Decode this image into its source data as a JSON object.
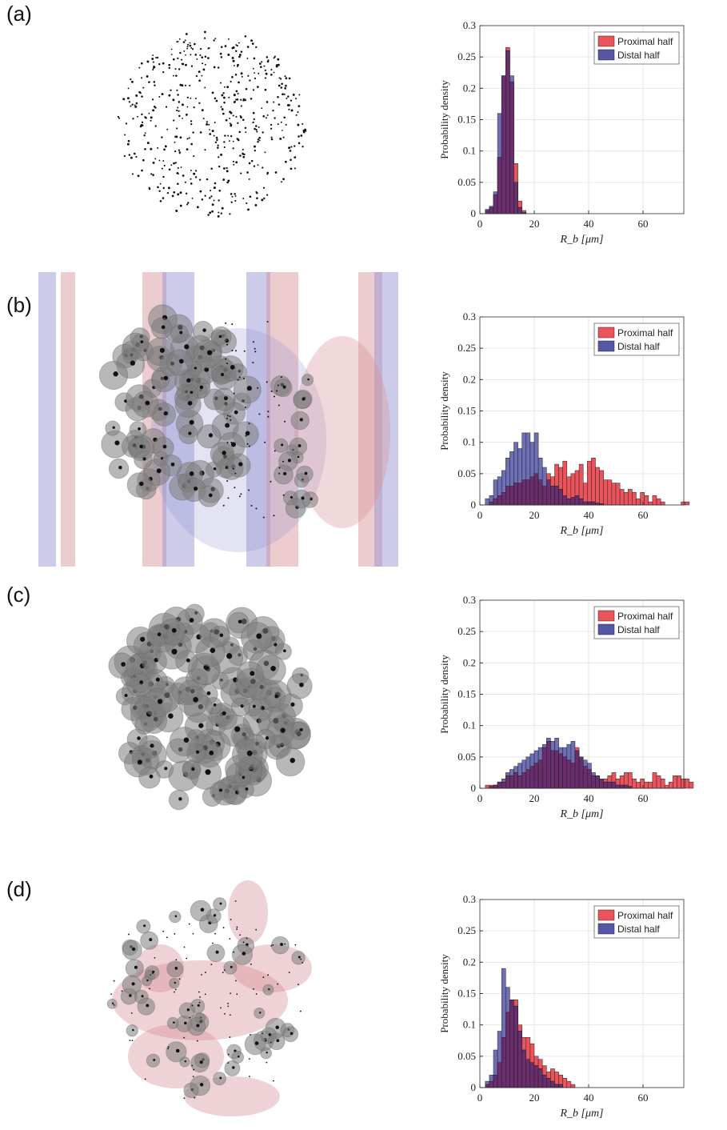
{
  "panels": [
    {
      "label": "(a)"
    },
    {
      "label": "(b)"
    },
    {
      "label": "(c)"
    },
    {
      "label": "(d)"
    }
  ],
  "colors": {
    "proximal": "#ec545c",
    "distal": "#5556a8",
    "overlap": "#6a2d6e",
    "grid": "#e6e6e6",
    "bubble": "#7d7d7d",
    "membrane_red": "#d88f95",
    "membrane_blue": "#8e8fd0"
  },
  "chart_data": [
    {
      "type": "bar",
      "panel": "(a)",
      "xlabel": "R_b [μm]",
      "ylabel": "Probability density",
      "xlim": [
        0,
        75
      ],
      "ylim": [
        0,
        0.3
      ],
      "xticks": [
        "0",
        "20",
        "40",
        "60"
      ],
      "yticks": [
        "0",
        "0.05",
        "0.1",
        "0.15",
        "0.2",
        "0.25",
        "0.3"
      ],
      "legend": "top-right",
      "grid": true,
      "bin_width": 1.5,
      "bin_start": 2,
      "series": [
        {
          "name": "Proximal half",
          "values": [
            0.005,
            0.01,
            0.03,
            0.09,
            0.22,
            0.265,
            0.21,
            0.08,
            0.02,
            0.005
          ]
        },
        {
          "name": "Distal half",
          "values": [
            0.007,
            0.012,
            0.035,
            0.16,
            0.22,
            0.26,
            0.22,
            0.05,
            0.01,
            0.002
          ]
        }
      ]
    },
    {
      "type": "bar",
      "panel": "(b)",
      "xlabel": "R_b [μm]",
      "ylabel": "Probability density",
      "xlim": [
        0,
        75
      ],
      "ylim": [
        0,
        0.3
      ],
      "xticks": [
        "0",
        "20",
        "40",
        "60"
      ],
      "yticks": [
        "0",
        "0.05",
        "0.1",
        "0.15",
        "0.2",
        "0.25",
        "0.3"
      ],
      "legend": "top-right",
      "grid": true,
      "bin_width": 1.5,
      "bin_start": 2,
      "series": [
        {
          "name": "Proximal half",
          "values": [
            0,
            0.005,
            0.01,
            0.015,
            0.02,
            0.03,
            0.03,
            0.035,
            0.035,
            0.04,
            0.04,
            0.045,
            0.05,
            0.04,
            0.03,
            0.05,
            0.045,
            0.065,
            0.06,
            0.07,
            0.045,
            0.05,
            0.055,
            0.065,
            0.035,
            0.07,
            0.075,
            0.06,
            0.055,
            0.04,
            0.04,
            0.035,
            0.035,
            0.025,
            0.02,
            0.025,
            0.02,
            0.01,
            0.02,
            0.015,
            0.005,
            0.015,
            0.01,
            0.005,
            0,
            0,
            0,
            0,
            0.005,
            0.005,
            0
          ]
        },
        {
          "name": "Distal half",
          "values": [
            0.01,
            0.015,
            0.04,
            0.045,
            0.055,
            0.075,
            0.085,
            0.1,
            0.09,
            0.115,
            0.115,
            0.1,
            0.115,
            0.075,
            0.06,
            0.04,
            0.03,
            0.03,
            0.025,
            0.015,
            0.01,
            0.012,
            0.015,
            0.01,
            0.005,
            0.005,
            0.005,
            0.003,
            0.002,
            0,
            0,
            0,
            0,
            0,
            0,
            0,
            0,
            0,
            0,
            0,
            0,
            0,
            0,
            0,
            0,
            0,
            0,
            0,
            0,
            0,
            0
          ]
        }
      ]
    },
    {
      "type": "bar",
      "panel": "(c)",
      "xlabel": "R_b [μm]",
      "ylabel": "Probability density",
      "xlim": [
        0,
        75
      ],
      "ylim": [
        0,
        0.3
      ],
      "xticks": [
        "0",
        "20",
        "40",
        "60"
      ],
      "yticks": [
        "0",
        "0.05",
        "0.1",
        "0.15",
        "0.2",
        "0.25",
        "0.3"
      ],
      "legend": "top-right",
      "grid": true,
      "bin_width": 1.5,
      "bin_start": 2,
      "series": [
        {
          "name": "Proximal half",
          "values": [
            0.005,
            0.005,
            0.005,
            0.01,
            0.01,
            0.02,
            0.02,
            0.025,
            0.02,
            0.025,
            0.03,
            0.035,
            0.04,
            0.045,
            0.065,
            0.075,
            0.06,
            0.06,
            0.055,
            0.05,
            0.045,
            0.04,
            0.065,
            0.05,
            0.035,
            0.03,
            0.02,
            0.02,
            0.015,
            0.015,
            0.02,
            0.025,
            0.015,
            0.02,
            0.025,
            0.025,
            0.015,
            0.01,
            0.015,
            0.01,
            0.01,
            0.025,
            0.02,
            0.015,
            0.005,
            0.01,
            0.02,
            0.02,
            0.015,
            0.015,
            0.01
          ]
        },
        {
          "name": "Distal half",
          "values": [
            0,
            0.003,
            0.005,
            0.01,
            0.015,
            0.025,
            0.03,
            0.035,
            0.04,
            0.045,
            0.05,
            0.055,
            0.06,
            0.065,
            0.07,
            0.08,
            0.075,
            0.08,
            0.065,
            0.065,
            0.07,
            0.075,
            0.06,
            0.05,
            0.045,
            0.04,
            0.025,
            0.02,
            0.015,
            0.01,
            0.01,
            0.01,
            0.005,
            0.005,
            0.005,
            0.003,
            0,
            0,
            0,
            0,
            0,
            0,
            0,
            0,
            0,
            0,
            0,
            0,
            0,
            0,
            0
          ]
        }
      ]
    },
    {
      "type": "bar",
      "panel": "(d)",
      "xlabel": "R_b [μm]",
      "ylabel": "Probability density",
      "xlim": [
        0,
        75
      ],
      "ylim": [
        0,
        0.3
      ],
      "xticks": [
        "0",
        "20",
        "40",
        "60"
      ],
      "yticks": [
        "0",
        "0.05",
        "0.1",
        "0.15",
        "0.2",
        "0.25",
        "0.3"
      ],
      "legend": "top-right",
      "grid": true,
      "bin_width": 1.5,
      "bin_start": 2,
      "series": [
        {
          "name": "Proximal half",
          "values": [
            0.005,
            0.01,
            0.02,
            0.04,
            0.08,
            0.12,
            0.14,
            0.14,
            0.1,
            0.08,
            0.08,
            0.07,
            0.05,
            0.045,
            0.035,
            0.025,
            0.03,
            0.025,
            0.02,
            0.015,
            0.01,
            0.005
          ]
        },
        {
          "name": "Distal half",
          "values": [
            0.01,
            0.02,
            0.06,
            0.09,
            0.19,
            0.16,
            0.14,
            0.13,
            0.09,
            0.06,
            0.045,
            0.04,
            0.035,
            0.03,
            0.02,
            0.015,
            0.01,
            0.005,
            0.005,
            0,
            0,
            0
          ]
        }
      ]
    }
  ]
}
